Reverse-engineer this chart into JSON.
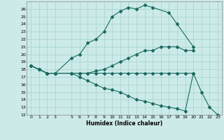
{
  "xlabel": "Humidex (Indice chaleur)",
  "bg_color": "#cceae8",
  "grid_color": "#aad6d3",
  "line_color": "#1a6b60",
  "ylim": [
    12,
    27
  ],
  "xlim": [
    -0.5,
    23.5
  ],
  "yticks": [
    12,
    13,
    14,
    15,
    16,
    17,
    18,
    19,
    20,
    21,
    22,
    23,
    24,
    25,
    26
  ],
  "xticks": [
    0,
    1,
    2,
    3,
    5,
    6,
    7,
    8,
    9,
    10,
    11,
    12,
    13,
    14,
    15,
    16,
    17,
    18,
    19,
    20,
    21,
    22,
    23
  ],
  "xtick_labels": [
    "0",
    "1",
    "2",
    "3",
    "5",
    "6",
    "7",
    "8",
    "9",
    "10",
    "11",
    "12",
    "13",
    "14",
    "15",
    "16",
    "17",
    "18",
    "19",
    "20",
    "21",
    "22",
    "23"
  ],
  "lines": [
    {
      "x": [
        0,
        1,
        2,
        3,
        5,
        6,
        7,
        8,
        9,
        10,
        11,
        12,
        13,
        14,
        15,
        17,
        18,
        20
      ],
      "y": [
        18.5,
        18.0,
        17.5,
        17.5,
        19.5,
        20.0,
        21.5,
        22.0,
        23.0,
        25.0,
        25.7,
        26.2,
        26.0,
        26.5,
        26.2,
        25.5,
        24.0,
        21.0
      ]
    },
    {
      "x": [
        0,
        1,
        2,
        3,
        5,
        6,
        7,
        8,
        9,
        10,
        11,
        12,
        13,
        14,
        15,
        16,
        17,
        18,
        19,
        20
      ],
      "y": [
        18.5,
        18.0,
        17.5,
        17.5,
        17.5,
        17.5,
        17.5,
        17.8,
        18.0,
        18.5,
        19.0,
        19.5,
        20.0,
        20.5,
        20.5,
        21.0,
        21.0,
        21.0,
        20.5,
        20.5
      ]
    },
    {
      "x": [
        0,
        1,
        2,
        3,
        5,
        6,
        7,
        8,
        9,
        10,
        11,
        12,
        13,
        14,
        15,
        16,
        17,
        18,
        19,
        20
      ],
      "y": [
        18.5,
        18.0,
        17.5,
        17.5,
        17.5,
        17.5,
        17.5,
        17.5,
        17.5,
        17.5,
        17.5,
        17.5,
        17.5,
        17.5,
        17.5,
        17.5,
        17.5,
        17.5,
        17.5,
        17.5
      ]
    },
    {
      "x": [
        0,
        1,
        2,
        3,
        5,
        6,
        7,
        8,
        9,
        10,
        11,
        12,
        13,
        14,
        15,
        16,
        17,
        18,
        19,
        20,
        21,
        22,
        23
      ],
      "y": [
        18.5,
        18.0,
        17.5,
        17.5,
        17.5,
        17.0,
        16.5,
        16.0,
        15.5,
        15.3,
        15.0,
        14.5,
        14.0,
        13.8,
        13.5,
        13.2,
        13.0,
        12.8,
        12.5,
        17.5,
        15.0,
        13.0,
        12.0
      ]
    }
  ]
}
